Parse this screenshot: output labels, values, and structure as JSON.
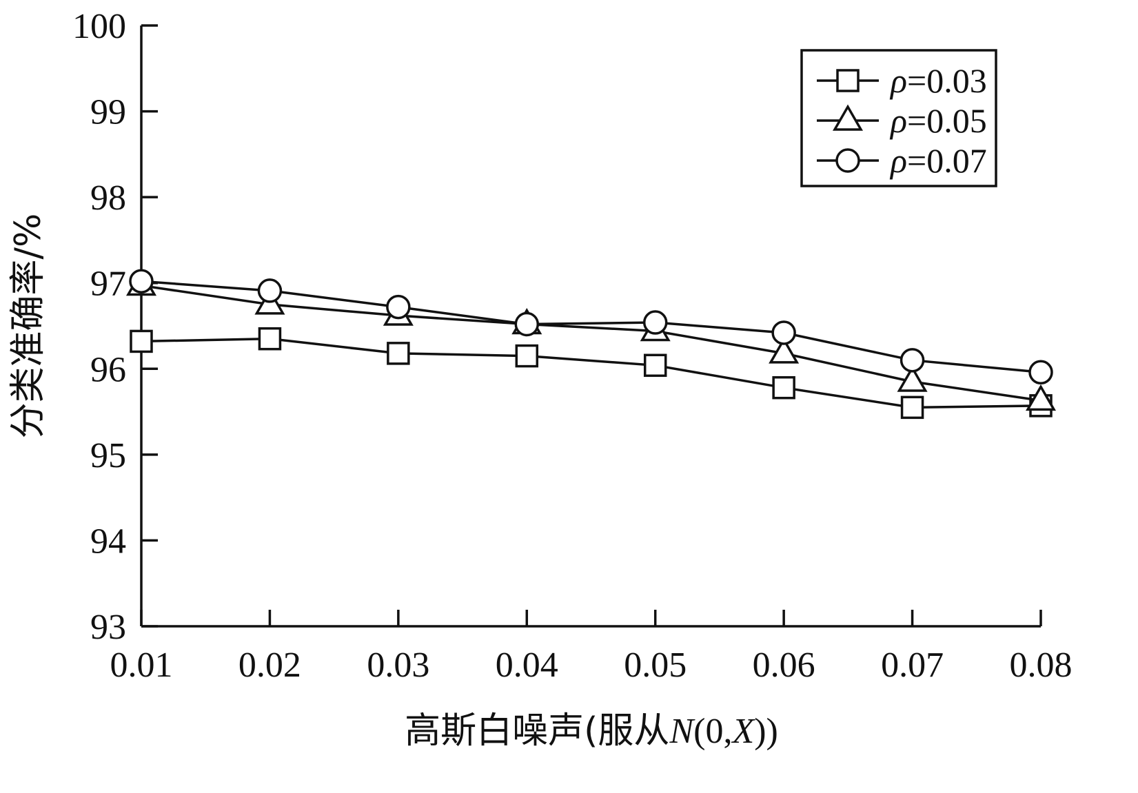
{
  "chart_data": {
    "type": "line",
    "xlabel": "高斯白噪声(服从N(0,X))",
    "xlabel_parts": [
      "高斯白噪声(服从",
      "N",
      "(0,",
      "X",
      "))"
    ],
    "ylabel": "分类准确率/%",
    "x": [
      0.01,
      0.02,
      0.03,
      0.04,
      0.05,
      0.06,
      0.07,
      0.08
    ],
    "x_tick_labels": [
      "0.01",
      "0.02",
      "0.03",
      "0.04",
      "0.05",
      "0.06",
      "0.07",
      "0.08"
    ],
    "ylim": [
      93,
      100
    ],
    "y_ticks": [
      93,
      94,
      95,
      96,
      97,
      98,
      99,
      100
    ],
    "y_tick_labels": [
      "93",
      "94",
      "95",
      "96",
      "97",
      "98",
      "99",
      "100"
    ],
    "grid": false,
    "legend_position": "top-right",
    "series": [
      {
        "name": "ρ=0.03",
        "name_symbol": "ρ",
        "name_value": "=0.03",
        "marker": "square",
        "values": [
          96.32,
          96.35,
          96.18,
          96.15,
          96.04,
          95.78,
          95.55,
          95.57
        ]
      },
      {
        "name": "ρ=0.05",
        "name_symbol": "ρ",
        "name_value": "=0.05",
        "marker": "triangle",
        "values": [
          96.97,
          96.75,
          96.62,
          96.52,
          96.44,
          96.18,
          95.85,
          95.63
        ]
      },
      {
        "name": "ρ=0.07",
        "name_symbol": "ρ",
        "name_value": "=0.07",
        "marker": "circle",
        "values": [
          97.02,
          96.91,
          96.72,
          96.52,
          96.54,
          96.42,
          96.1,
          95.96
        ]
      }
    ]
  }
}
